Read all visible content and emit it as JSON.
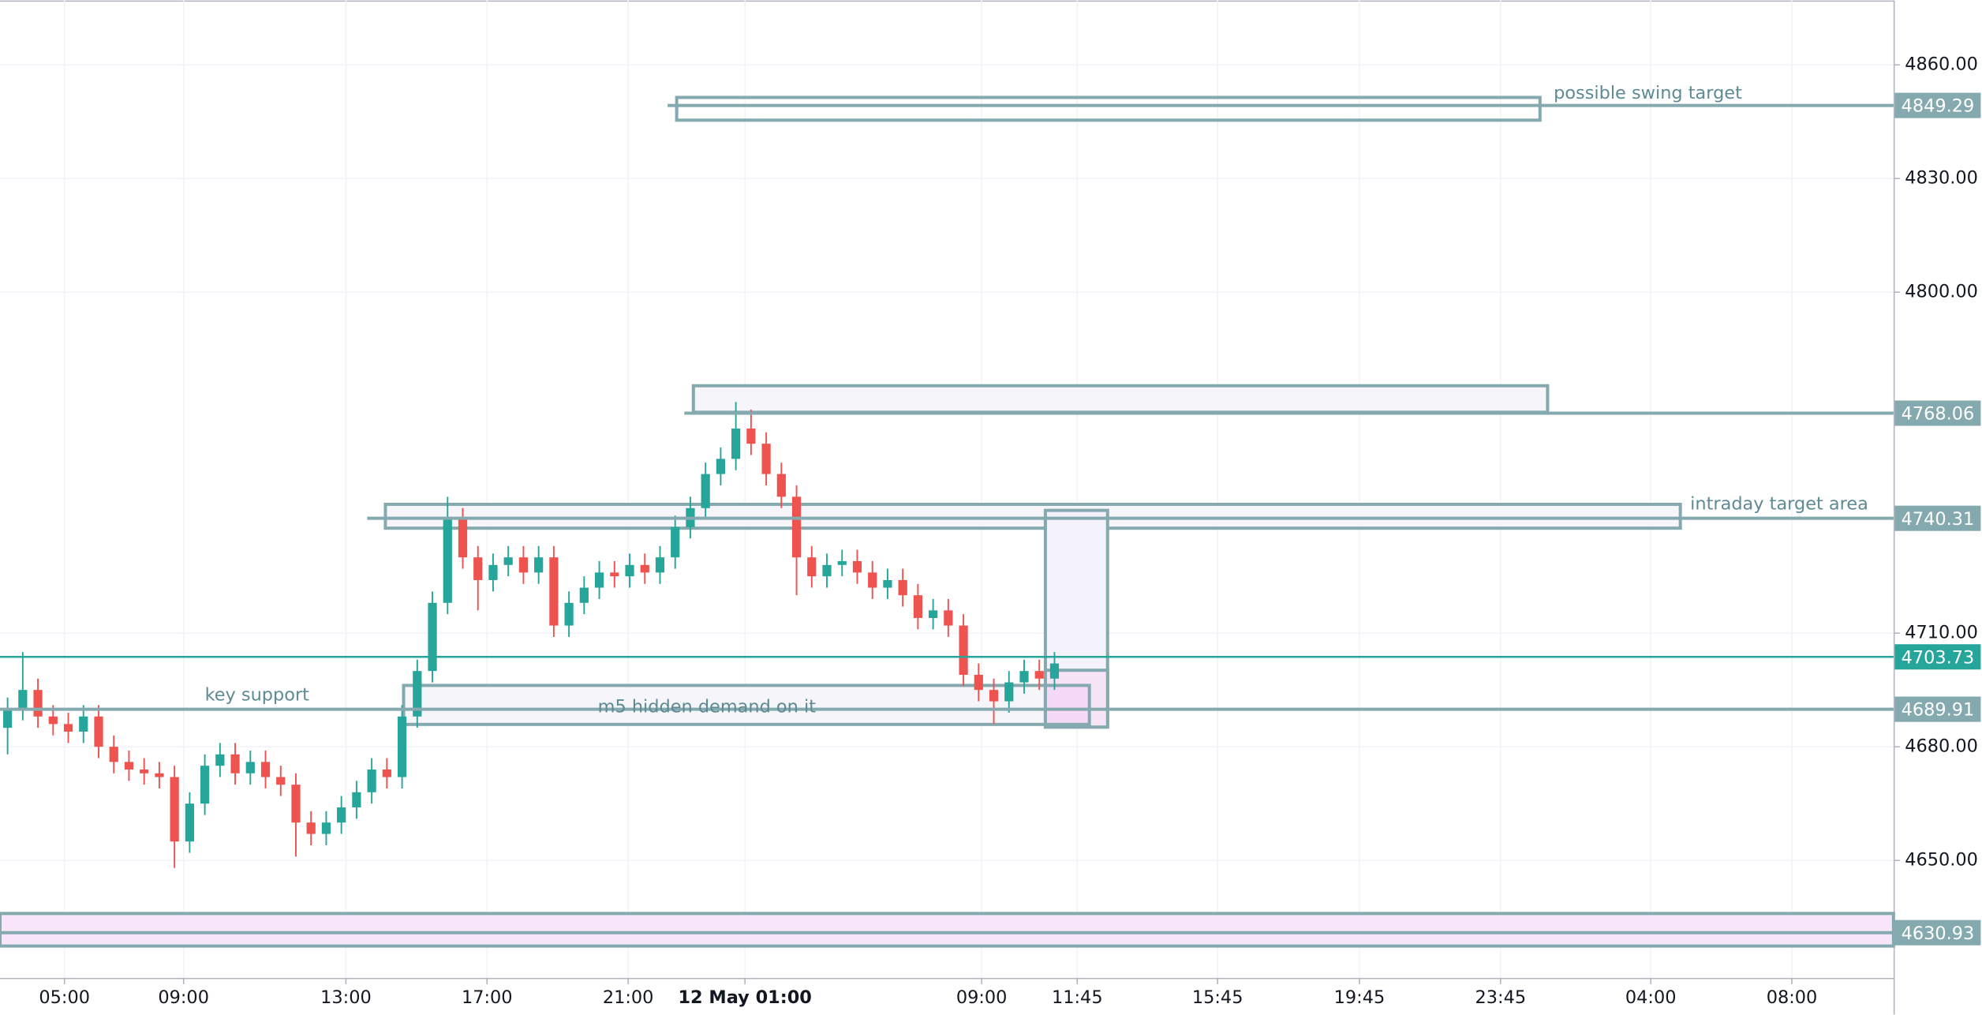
{
  "chart_data": {
    "type": "candlestick",
    "up_color": "#26a69a",
    "down_color": "#ef5350",
    "open": [
      4685,
      4690,
      4695,
      4688,
      4686,
      4684,
      4688,
      4680,
      4676,
      4674,
      4673,
      4672,
      4655,
      4665,
      4675,
      4678,
      4673,
      4676,
      4672,
      4670,
      4660,
      4657,
      4660,
      4664,
      4668,
      4674,
      4672,
      4688,
      4700,
      4718,
      4740,
      4730,
      4724,
      4728,
      4730,
      4726,
      4730,
      4712,
      4718,
      4722,
      4726,
      4725,
      4728,
      4726,
      4730,
      4738,
      4743,
      4752,
      4756,
      4764,
      4760,
      4752,
      4746,
      4730,
      4725,
      4728,
      4729,
      4726,
      4722,
      4724,
      4720,
      4714,
      4716,
      4712,
      4699,
      4695,
      4692,
      4697,
      4700,
      4698
    ],
    "high": [
      4693,
      4705,
      4698,
      4691,
      4689,
      4691,
      4691,
      4683,
      4679,
      4677,
      4676,
      4675,
      4668,
      4678,
      4681,
      4681,
      4679,
      4679,
      4675,
      4673,
      4663,
      4663,
      4667,
      4671,
      4677,
      4677,
      4691,
      4703,
      4721,
      4746,
      4743,
      4733,
      4731,
      4733,
      4733,
      4733,
      4733,
      4721,
      4725,
      4729,
      4729,
      4731,
      4731,
      4733,
      4741,
      4746,
      4755,
      4759,
      4771,
      4769,
      4763,
      4755,
      4749,
      4733,
      4731,
      4732,
      4732,
      4729,
      4727,
      4727,
      4723,
      4719,
      4719,
      4715,
      4702,
      4698,
      4700,
      4703,
      4703,
      4705
    ],
    "low": [
      4678,
      4687,
      4685,
      4683,
      4681,
      4681,
      4677,
      4673,
      4671,
      4670,
      4669,
      4648,
      4652,
      4662,
      4672,
      4670,
      4670,
      4669,
      4667,
      4651,
      4654,
      4654,
      4657,
      4661,
      4665,
      4669,
      4669,
      4685,
      4697,
      4715,
      4727,
      4716,
      4721,
      4725,
      4723,
      4723,
      4709,
      4709,
      4715,
      4719,
      4722,
      4722,
      4723,
      4723,
      4727,
      4735,
      4740,
      4749,
      4753,
      4757,
      4749,
      4743,
      4720,
      4722,
      4722,
      4725,
      4723,
      4719,
      4719,
      4717,
      4711,
      4711,
      4709,
      4696,
      4692,
      4686,
      4689,
      4694,
      4695,
      4695
    ],
    "close": [
      4690,
      4695,
      4688,
      4686,
      4684,
      4688,
      4680,
      4676,
      4674,
      4673,
      4672,
      4655,
      4665,
      4675,
      4678,
      4673,
      4676,
      4672,
      4670,
      4660,
      4657,
      4660,
      4664,
      4668,
      4674,
      4672,
      4688,
      4700,
      4718,
      4740,
      4730,
      4724,
      4728,
      4730,
      4726,
      4730,
      4712,
      4718,
      4722,
      4726,
      4725,
      4728,
      4726,
      4730,
      4738,
      4743,
      4752,
      4756,
      4764,
      4760,
      4752,
      4746,
      4730,
      4725,
      4728,
      4729,
      4726,
      4722,
      4724,
      4720,
      4714,
      4716,
      4712,
      4699,
      4695,
      4692,
      4697,
      4700,
      4698,
      4702
    ],
    "xlim": [
      -0.5,
      124.3
    ],
    "ylim": [
      4619,
      4877
    ],
    "yticks": [
      {
        "value": 4860,
        "label": "4860.00"
      },
      {
        "value": 4830,
        "label": "4830.00"
      },
      {
        "value": 4800,
        "label": "4800.00"
      },
      {
        "value": 4710,
        "label": "4710.00"
      },
      {
        "value": 4680,
        "label": "4680.00"
      },
      {
        "value": 4650,
        "label": "4650.00"
      }
    ],
    "xticks": [
      {
        "value": 3.75,
        "label": "05:00"
      },
      {
        "value": 11.6,
        "label": "09:00"
      },
      {
        "value": 22.3,
        "label": "13:00"
      },
      {
        "value": 31.6,
        "label": "17:00"
      },
      {
        "value": 40.9,
        "label": "21:00"
      },
      {
        "value": 48.6,
        "label": "12 May 01:00"
      },
      {
        "value": 64.2,
        "label": "09:00"
      },
      {
        "value": 70.5,
        "label": "11:45"
      },
      {
        "value": 79.75,
        "label": "15:45"
      },
      {
        "value": 89.1,
        "label": "19:45"
      },
      {
        "value": 98.4,
        "label": "23:45"
      },
      {
        "value": 108.3,
        "label": "04:00"
      },
      {
        "value": 117.6,
        "label": "08:00"
      }
    ],
    "grid": true,
    "zones": [
      {
        "x": [
          44.1,
          101
        ],
        "y": [
          4845.4,
          4851.4
        ],
        "fill": "none"
      },
      {
        "x": [
          45.2,
          101.5
        ],
        "y": [
          4768.3,
          4775.3
        ],
        "fill": "#f5f5fa"
      },
      {
        "x": [
          24.9,
          110.25
        ],
        "y": [
          4737.7,
          4744.0
        ],
        "fill": "#f5f5fa"
      },
      {
        "x": [
          68.4,
          72.5
        ],
        "y": [
          4685.2,
          4742.4
        ],
        "fill": "#f4f2fb"
      },
      {
        "x": [
          26.1,
          71.3
        ],
        "y": [
          4685.9,
          4696.2
        ],
        "fill": "#f5f5fa"
      },
      {
        "x": [
          68.4,
          72.5
        ],
        "y": [
          4685.2,
          4700.2
        ],
        "fill": "#f8e4f7"
      },
      {
        "x": [
          68.4,
          71.3
        ],
        "y": [
          4685.9,
          4696.2
        ],
        "fill": "#f6d9f6"
      },
      {
        "x": [
          -0.5,
          124.3
        ],
        "y": [
          4627.4,
          4636.0
        ],
        "fill": "#f7e6fa"
      }
    ],
    "price_lines": [
      {
        "value": 4849.29,
        "start": 43.5,
        "color": "#84a9ae"
      },
      {
        "value": 4768.06,
        "start": 44.6,
        "color": "#84a9ae"
      },
      {
        "value": 4740.31,
        "start": 23.7,
        "color": "#84a9ae"
      },
      {
        "value": 4703.73,
        "start": -0.5,
        "color": "#26a69a"
      },
      {
        "value": 4689.91,
        "start": -0.5,
        "color": "#84a9ae"
      },
      {
        "value": 4630.93,
        "start": -0.5,
        "color": "#84a9ae"
      }
    ],
    "annotations": [
      {
        "text": "possible swing target",
        "x": 101.9,
        "y": 4852.4
      },
      {
        "text": "intraday target area",
        "x": 110.9,
        "y": 4744.0
      },
      {
        "text": "key support",
        "x": 13.0,
        "y": 4693.6
      },
      {
        "text": "m5 hidden demand on it",
        "x": 38.9,
        "y": 4690.5
      }
    ]
  }
}
